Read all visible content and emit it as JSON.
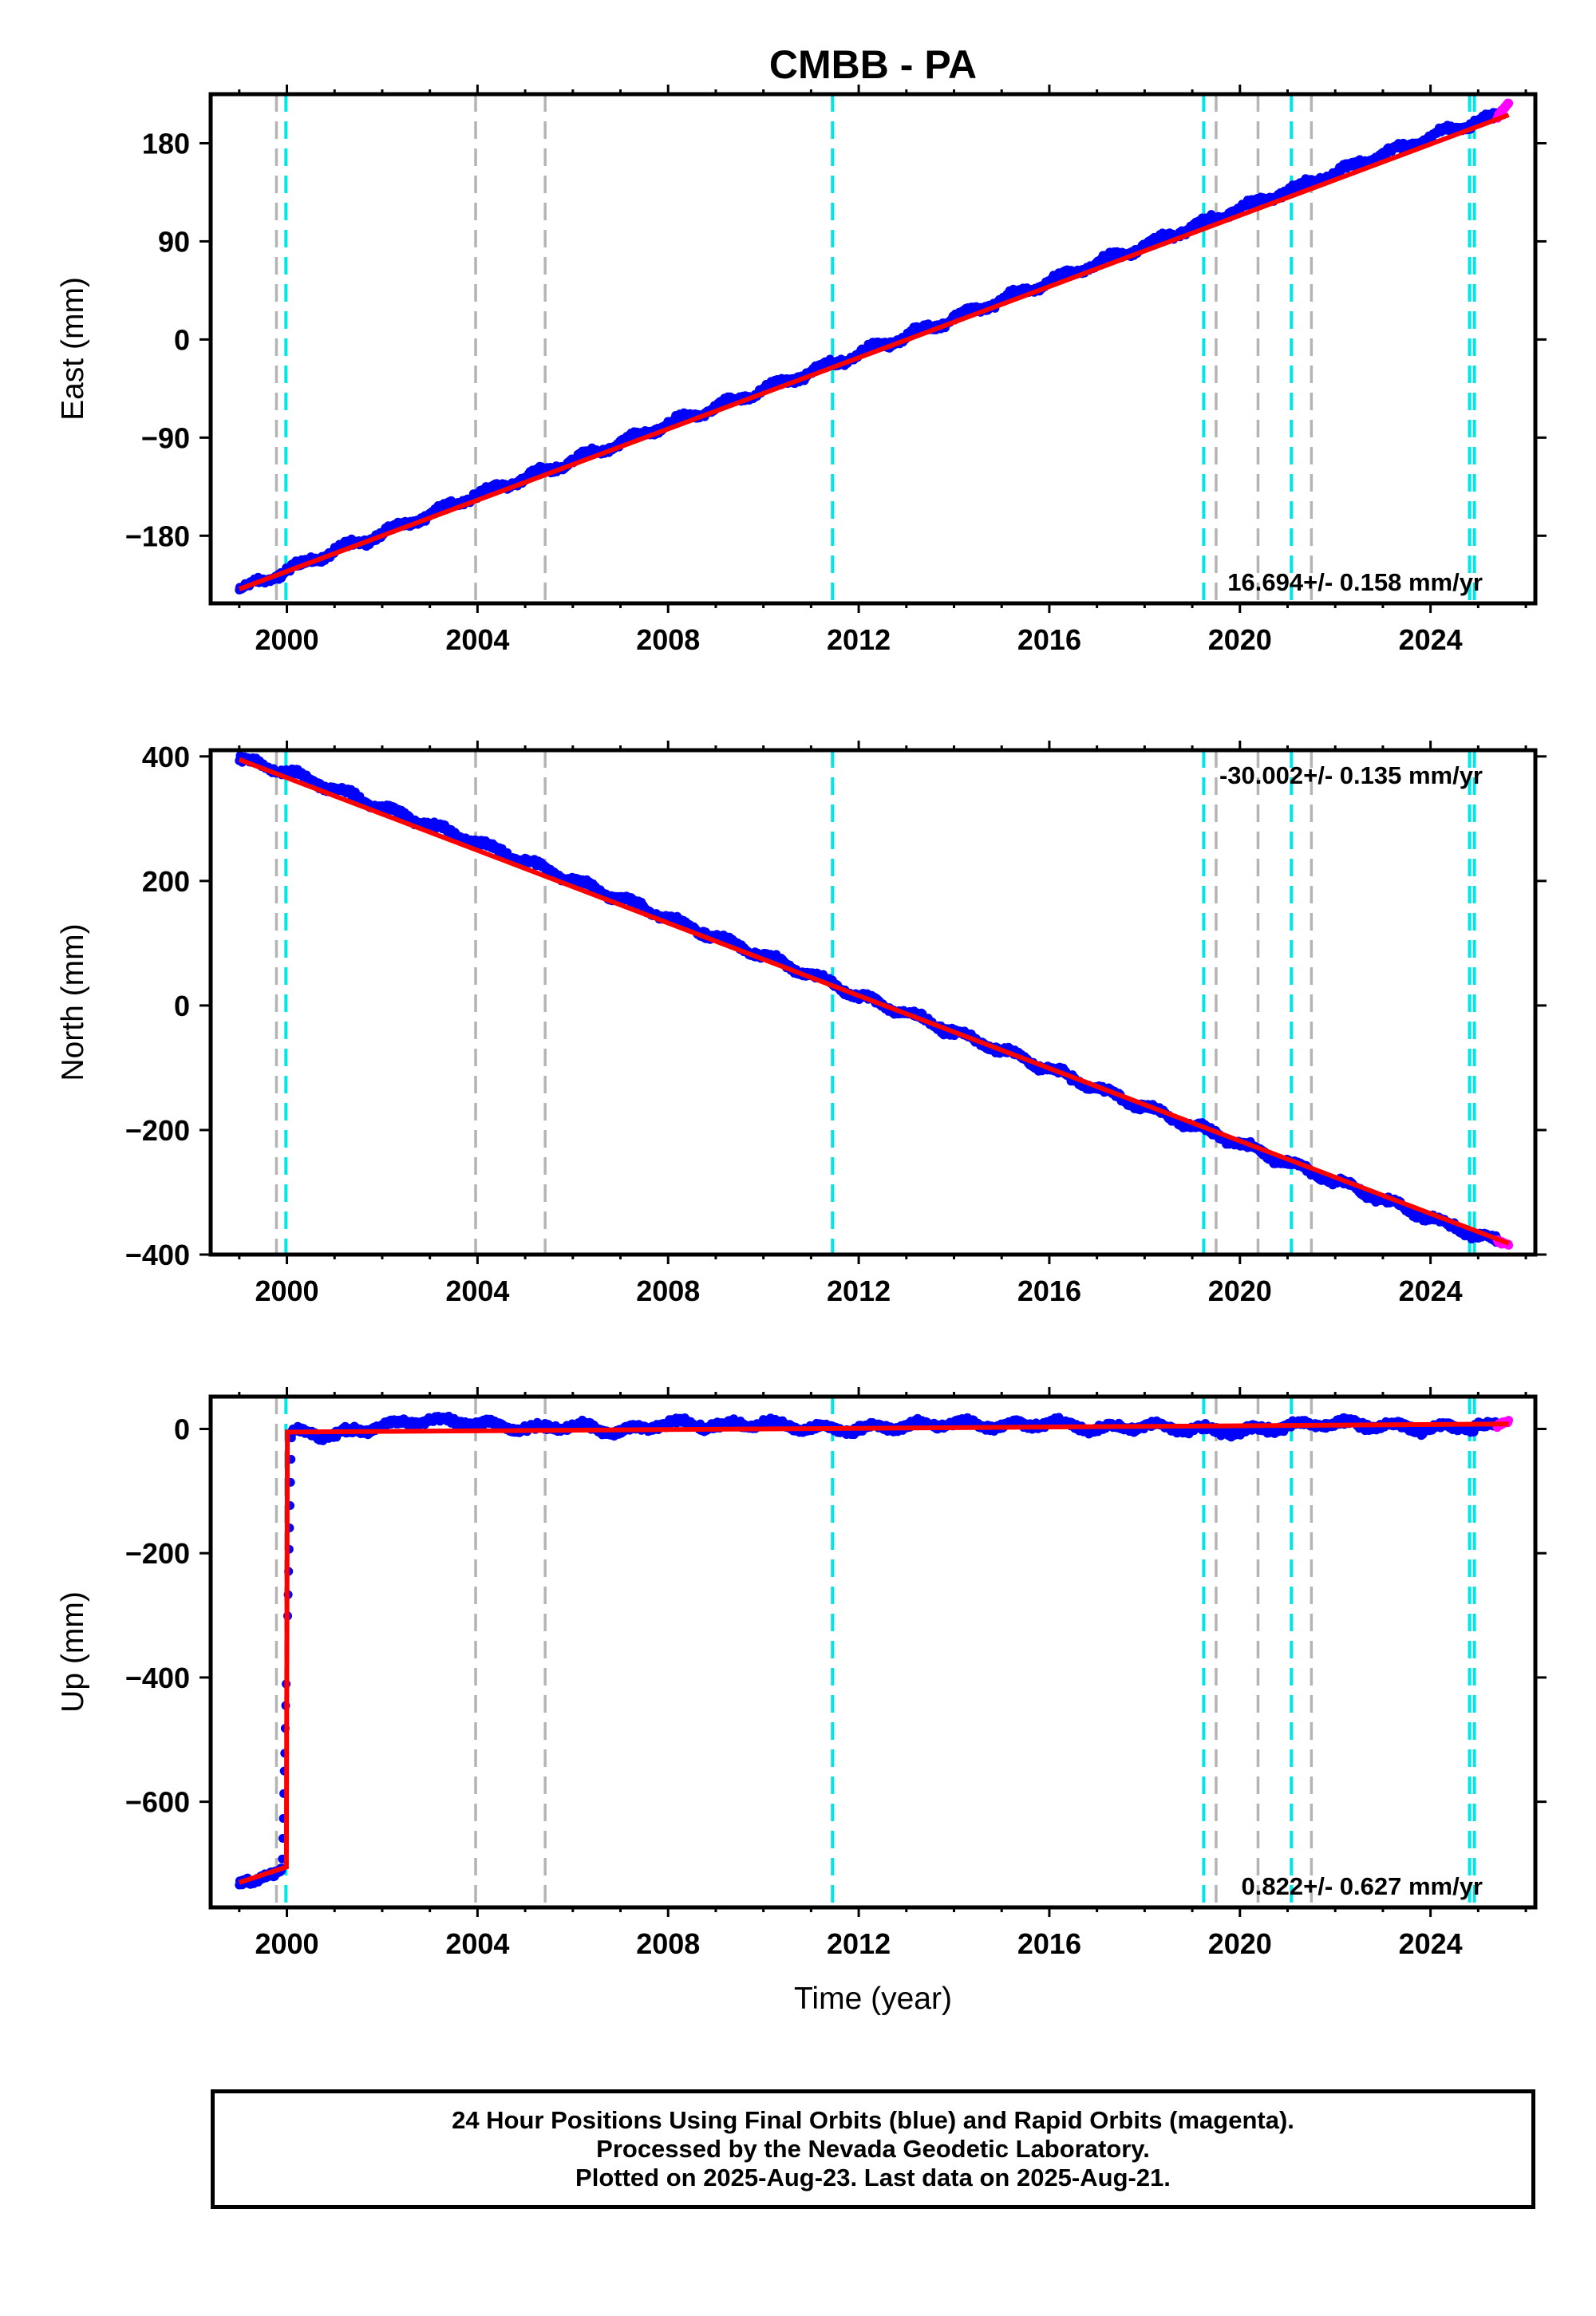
{
  "chart_data": {
    "title": "CMBB - PA",
    "type": "scatter",
    "xlabel": "Time (year)",
    "xlim": [
      1998.4,
      2026.2
    ],
    "x_ticks": [
      2000,
      2004,
      2008,
      2012,
      2016,
      2020,
      2024
    ],
    "x_tick_labels": [
      "2000",
      "2004",
      "2008",
      "2012",
      "2016",
      "2020",
      "2024"
    ],
    "time_range": [
      1999.0,
      2025.64
    ],
    "legend": "none",
    "grid": false,
    "colors": {
      "final_orbits": "#0000ff",
      "rapid_orbits": "#ff00ff",
      "model": "#ff0000",
      "equipment_change": "#00e5e5",
      "earthquake": "#b4b4b4"
    },
    "equipment_changes": [
      1999.98,
      2011.45,
      2019.24,
      2021.08,
      2024.82,
      2024.92
    ],
    "earthquake_events": [
      1999.78,
      2003.96,
      2005.42,
      2019.5,
      2020.38,
      2021.5
    ],
    "panels": [
      {
        "ylabel": "East (mm)",
        "ylim": [
          -242,
          225
        ],
        "y_ticks": [
          -180,
          -90,
          0,
          90,
          180
        ],
        "y_tick_labels": [
          "−180",
          "−90",
          "0",
          "90",
          "180"
        ],
        "rate_text": "16.694+/- 0.158 mm/yr",
        "rate_position": "bottom-right",
        "series": [
          {
            "name": "Final orbits",
            "x": [
              1999.0,
              2000.0,
              2001.0,
              2002.0,
              2003.0,
              2004.0,
              2005.0,
              2006.0,
              2007.0,
              2008.0,
              2009.0,
              2010.0,
              2011.0,
              2012.0,
              2013.0,
              2014.0,
              2015.0,
              2016.0,
              2017.0,
              2018.0,
              2019.0,
              2020.0,
              2021.0,
              2022.0,
              2023.0,
              2024.0,
              2025.0,
              2025.6
            ],
            "y": [
              -230,
              -212,
              -194,
              -178,
              -160,
              -142,
              -127,
              -111,
              -95,
              -78,
              -62,
              -46,
              -30,
              -13,
              3,
              20,
              36,
              53,
              70,
              86,
              103,
              120,
              136,
              153,
              170,
              186,
              200,
              205
            ]
          },
          {
            "name": "Rapid orbits",
            "x": [
              2025.4,
              2025.5,
              2025.64
            ],
            "y": [
              204,
              210,
              217
            ]
          }
        ],
        "model": {
          "x": [
            1999.0,
            2025.64
          ],
          "y": [
            -229,
            206
          ]
        }
      },
      {
        "ylabel": "North (mm)",
        "ylim": [
          -400,
          410
        ],
        "y_ticks": [
          -400,
          -200,
          0,
          200,
          400
        ],
        "y_tick_labels": [
          "−400",
          "−200",
          "0",
          "200",
          "400"
        ],
        "rate_text": "-30.002+/- 0.135 mm/yr",
        "rate_position": "top-right",
        "series": [
          {
            "name": "Final orbits",
            "x": [
              1999.0,
              2000.0,
              2001.0,
              2002.0,
              2003.0,
              2004.0,
              2005.0,
              2006.0,
              2007.0,
              2008.0,
              2009.0,
              2010.0,
              2011.0,
              2012.0,
              2013.0,
              2014.0,
              2015.0,
              2016.0,
              2017.0,
              2018.0,
              2019.0,
              2020.0,
              2021.0,
              2022.0,
              2023.0,
              2024.0,
              2025.0,
              2025.6
            ],
            "y": [
              395,
              375,
              348,
              318,
              290,
              262,
              232,
              202,
              172,
              140,
              110,
              80,
              50,
              15,
              -12,
              -43,
              -72,
              -102,
              -133,
              -163,
              -193,
              -222,
              -252,
              -282,
              -312,
              -342,
              -370,
              -382
            ]
          },
          {
            "name": "Rapid orbits",
            "x": [
              2025.4,
              2025.5,
              2025.64
            ],
            "y": [
              -378,
              -381,
              -384
            ]
          }
        ],
        "model": {
          "x": [
            1999.0,
            2025.64
          ],
          "y": [
            395,
            -382
          ]
        }
      },
      {
        "ylabel": "Up (mm)",
        "ylim": [
          -770,
          52
        ],
        "y_ticks": [
          -600,
          -400,
          -200,
          0
        ],
        "y_tick_labels": [
          "−600",
          "−400",
          "−200",
          "0"
        ],
        "rate_text": "0.822+/- 0.627 mm/yr",
        "rate_position": "bottom-right",
        "series": [
          {
            "name": "Final orbits",
            "x": [
              1999.0,
              1999.3,
              1999.6,
              1999.9,
              2000.1,
              2001.0,
              2002.0,
              2003.0,
              2004.0,
              2005.0,
              2006.0,
              2007.0,
              2008.0,
              2009.0,
              2010.0,
              2011.0,
              2012.0,
              2013.0,
              2014.0,
              2015.0,
              2016.0,
              2017.0,
              2018.0,
              2019.0,
              2020.0,
              2021.0,
              2022.0,
              2023.0,
              2024.0,
              2025.0,
              2025.6
            ],
            "y": [
              -730,
              -735,
              -715,
              -705,
              -5,
              -10,
              5,
              15,
              10,
              0,
              5,
              -5,
              10,
              5,
              10,
              0,
              0,
              5,
              10,
              5,
              10,
              0,
              5,
              0,
              -5,
              5,
              10,
              5,
              0,
              5,
              0
            ]
          },
          {
            "name": "Rapid orbits",
            "x": [
              2025.4,
              2025.5,
              2025.64
            ],
            "y": [
              5,
              10,
              12
            ]
          }
        ],
        "model": {
          "x": [
            1999.0,
            1999.99,
            1999.99,
            2000.01,
            2025.64
          ],
          "y": [
            -730,
            -705,
            -705,
            -5,
            8
          ]
        }
      }
    ]
  },
  "caption": {
    "line1": "24 Hour Positions Using Final Orbits (blue) and Rapid Orbits (magenta).",
    "line2": "Processed by the Nevada Geodetic Laboratory.",
    "line3": "Plotted on 2025-Aug-23. Last data on 2025-Aug-21."
  }
}
